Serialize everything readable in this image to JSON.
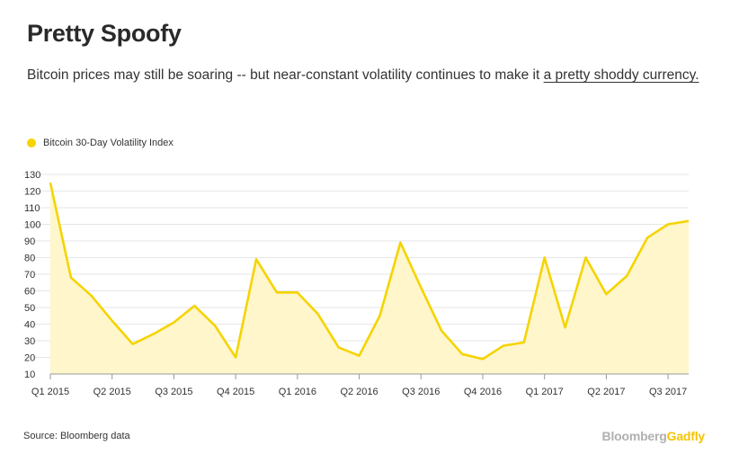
{
  "header": {
    "title": "Pretty Spoofy",
    "subtitle": "Bitcoin prices may still be soaring -- but near-constant volatility continues to make it ",
    "subtitle_link": "a pretty shoddy currency."
  },
  "footer": {
    "source": "Source: Bloomberg data",
    "brand_main": "Bloomberg",
    "brand_accent": "Gadfly"
  },
  "colors": {
    "line": "#F5D400",
    "fill": "#FFF6CC",
    "grid": "#e6e6e6",
    "axis": "#999999"
  },
  "chart_data": {
    "type": "area",
    "title": "",
    "xlabel": "",
    "ylabel": "",
    "ylim": [
      10,
      130
    ],
    "yticks": [
      10,
      20,
      30,
      40,
      50,
      60,
      70,
      80,
      90,
      100,
      110,
      120,
      130
    ],
    "grid": true,
    "legend_position": "top-left",
    "xtick_labels": [
      "Q1 2015",
      "Q2 2015",
      "Q3 2015",
      "Q4 2015",
      "Q1 2016",
      "Q2 2016",
      "Q3 2016",
      "Q4 2016",
      "Q1 2017",
      "Q2 2017",
      "Q3 2017"
    ],
    "x_range": [
      0,
      31
    ],
    "series": [
      {
        "name": "Bitcoin 30-Day Volatility Index",
        "x": [
          0,
          1,
          2,
          3,
          4,
          5,
          6,
          7,
          8,
          9,
          10,
          11,
          12,
          13,
          14,
          15,
          16,
          17,
          18,
          19,
          20,
          21,
          22,
          23,
          24,
          25,
          26,
          27,
          28,
          29,
          30,
          31
        ],
        "values": [
          125,
          68,
          57,
          42,
          28,
          34,
          41,
          51,
          39,
          20,
          79,
          59,
          59,
          46,
          26,
          21,
          45,
          89,
          62,
          36,
          22,
          19,
          27,
          29,
          80,
          38,
          80,
          58,
          69,
          92,
          100,
          102
        ]
      }
    ]
  }
}
